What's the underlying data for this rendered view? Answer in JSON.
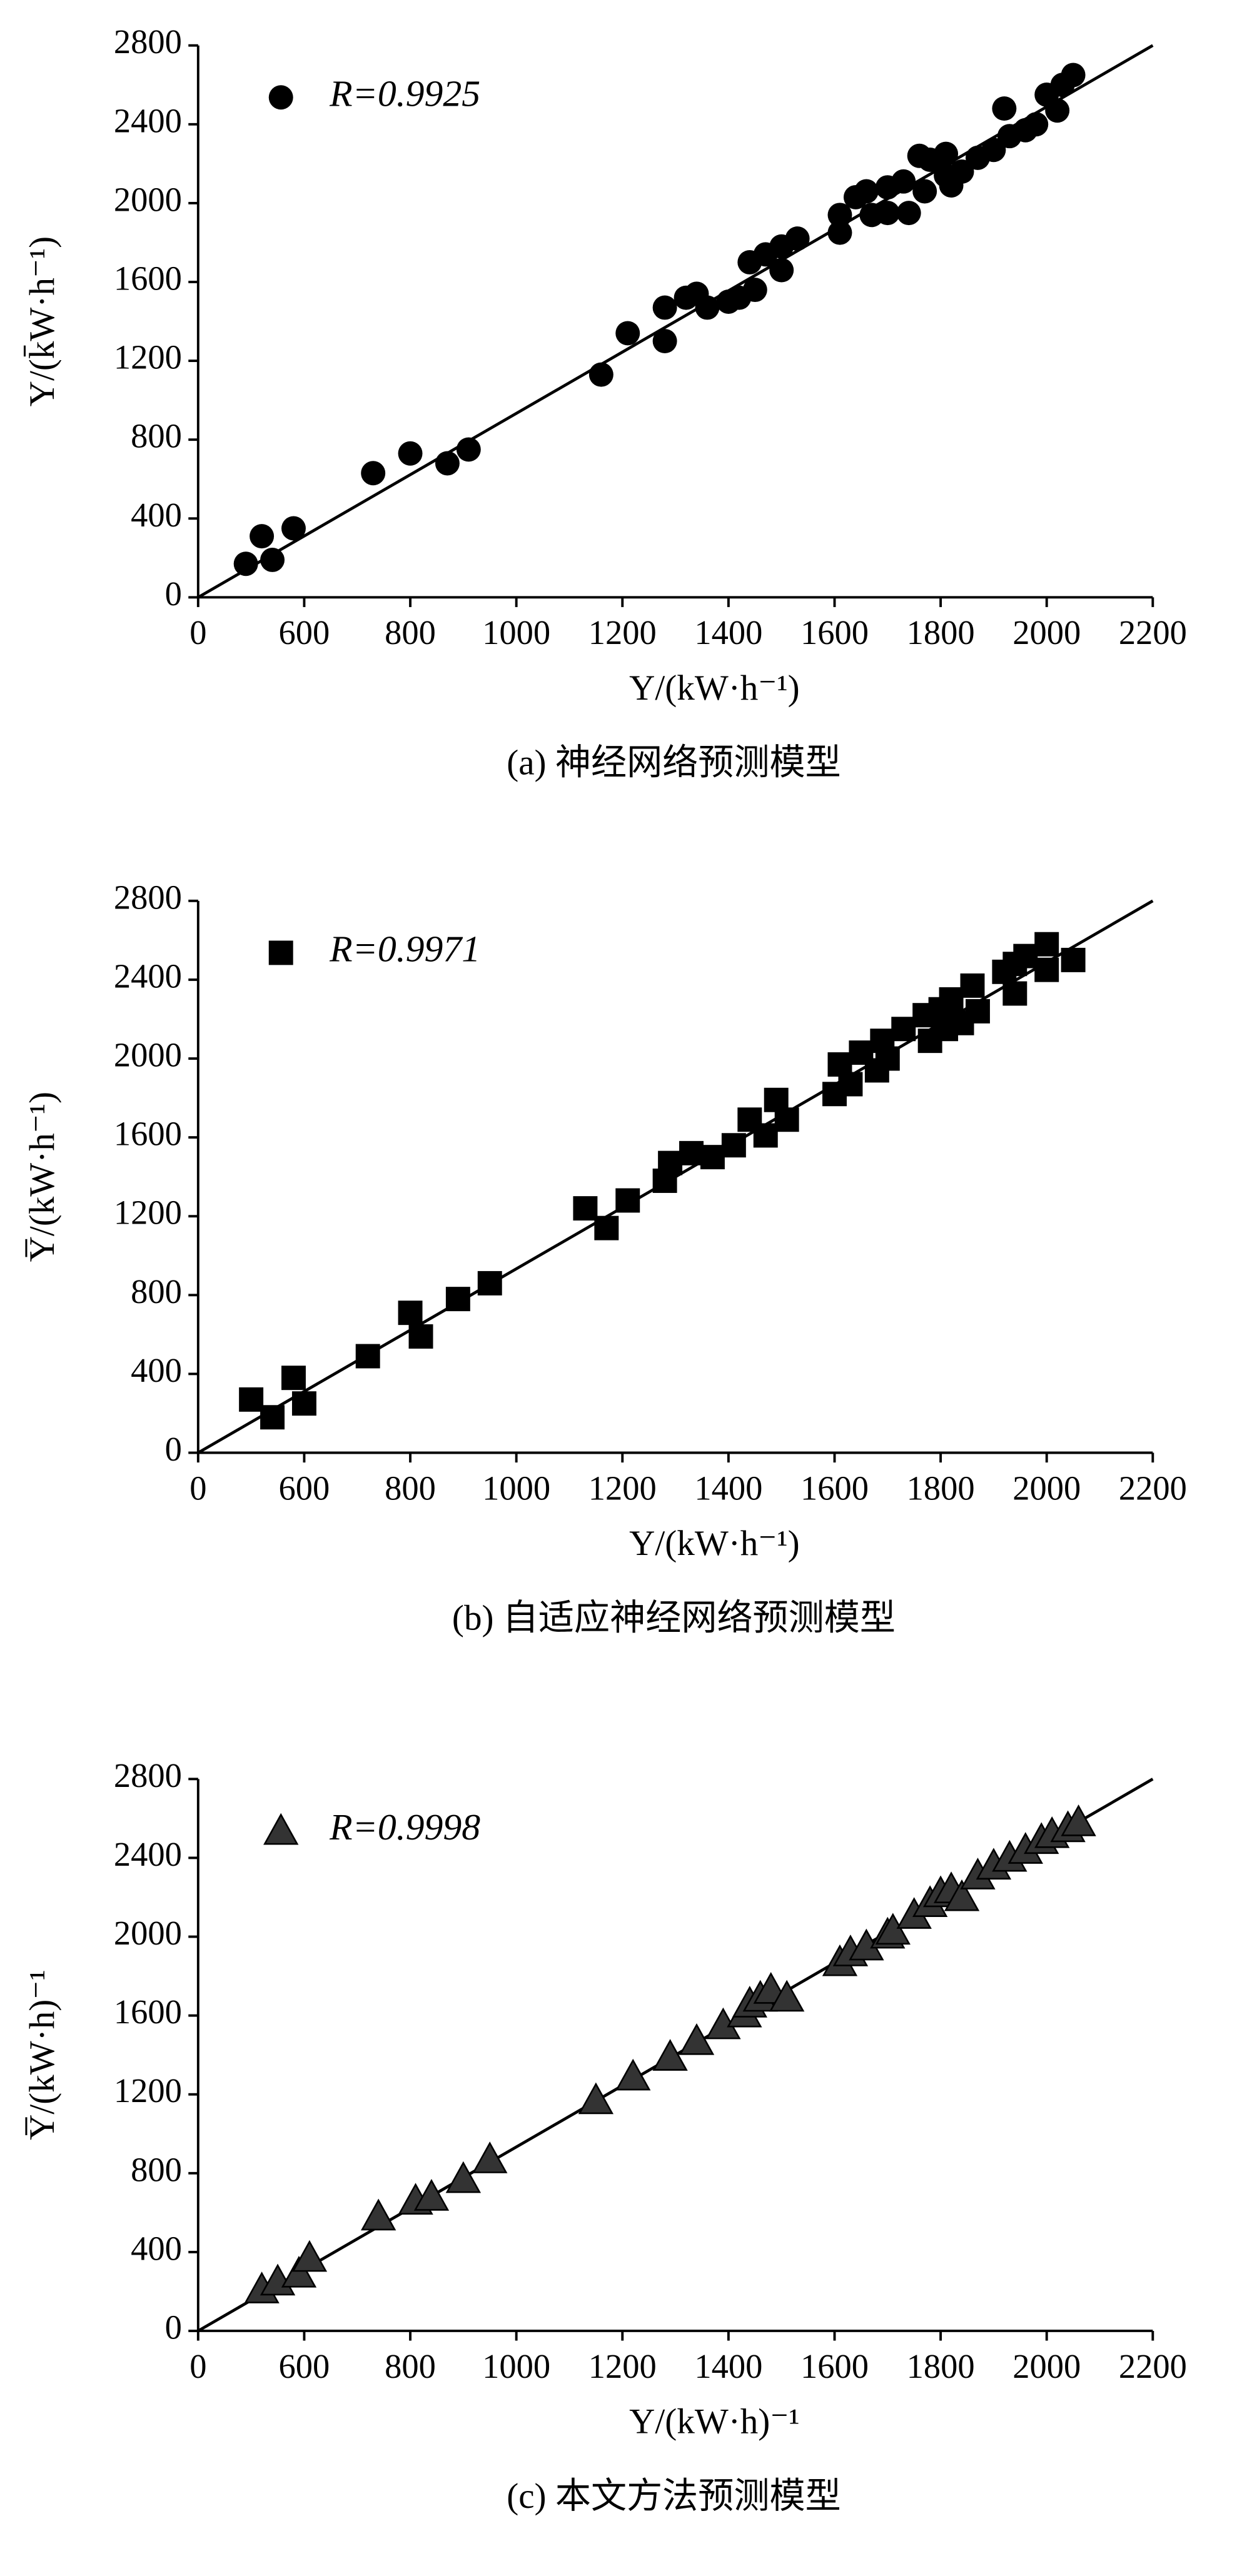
{
  "chart_data": [
    {
      "type": "scatter",
      "caption": "(a) 神经网络预测模型",
      "x_label": "Y/(kW·h⁻¹)",
      "y_label": "Y/(k̄W·h⁻¹)",
      "xlim": [
        400,
        2200
      ],
      "ylim": [
        0,
        2800
      ],
      "xticks": [
        {
          "value": 400,
          "label": "0"
        },
        600,
        800,
        1000,
        1200,
        1400,
        1600,
        1800,
        2000,
        2200
      ],
      "yticks": [
        0,
        400,
        800,
        1200,
        1600,
        2000,
        2400,
        2800
      ],
      "line": {
        "x": [
          400,
          2200
        ],
        "y": [
          0,
          2800
        ],
        "color": "#000000"
      },
      "series": [
        {
          "name": "R=0.9925",
          "color": "#000000",
          "marker": "circle",
          "x": [
            490,
            520,
            540,
            580,
            730,
            800,
            870,
            910,
            1160,
            1210,
            1280,
            1280,
            1320,
            1340,
            1360,
            1400,
            1420,
            1450,
            1440,
            1470,
            1500,
            1500,
            1530,
            1610,
            1610,
            1640,
            1660,
            1670,
            1700,
            1700,
            1730,
            1740,
            1760,
            1770,
            1780,
            1810,
            1810,
            1820,
            1840,
            1870,
            1900,
            1920,
            1930,
            1960,
            1980,
            2000,
            2020,
            2030,
            2050
          ],
          "values": [
            170,
            310,
            190,
            350,
            630,
            730,
            680,
            750,
            1130,
            1340,
            1300,
            1470,
            1520,
            1540,
            1470,
            1500,
            1520,
            1560,
            1700,
            1740,
            1660,
            1780,
            1820,
            1940,
            1850,
            2030,
            2060,
            1940,
            2080,
            1950,
            2110,
            1950,
            2240,
            2060,
            2220,
            2250,
            2140,
            2090,
            2160,
            2230,
            2270,
            2480,
            2340,
            2370,
            2400,
            2550,
            2470,
            2600,
            2650
          ]
        }
      ]
    },
    {
      "type": "scatter",
      "caption": "(b) 自适应神经网络预测模型",
      "x_label": "Y/(kW·h⁻¹)",
      "y_label": "Y̅/(kW·h⁻¹)",
      "xlim": [
        400,
        2200
      ],
      "ylim": [
        0,
        2800
      ],
      "xticks": [
        {
          "value": 400,
          "label": "0"
        },
        600,
        800,
        1000,
        1200,
        1400,
        1600,
        1800,
        2000,
        2200
      ],
      "yticks": [
        0,
        400,
        800,
        1200,
        1600,
        2000,
        2400,
        2800
      ],
      "line": {
        "x": [
          400,
          2200
        ],
        "y": [
          0,
          2800
        ],
        "color": "#000000"
      },
      "series": [
        {
          "name": "R=0.9971",
          "color": "#000000",
          "marker": "square",
          "x": [
            500,
            540,
            580,
            600,
            720,
            800,
            820,
            890,
            950,
            1130,
            1170,
            1210,
            1280,
            1290,
            1330,
            1370,
            1410,
            1440,
            1470,
            1490,
            1510,
            1600,
            1610,
            1630,
            1650,
            1680,
            1690,
            1700,
            1730,
            1770,
            1780,
            1800,
            1810,
            1820,
            1840,
            1860,
            1870,
            1920,
            1940,
            1940,
            1960,
            2000,
            2000,
            2050
          ],
          "values": [
            270,
            180,
            380,
            250,
            490,
            710,
            590,
            780,
            860,
            1240,
            1140,
            1280,
            1380,
            1470,
            1520,
            1500,
            1560,
            1690,
            1610,
            1790,
            1690,
            1820,
            1970,
            1870,
            2030,
            1940,
            2090,
            2000,
            2150,
            2220,
            2090,
            2250,
            2150,
            2300,
            2180,
            2370,
            2240,
            2440,
            2480,
            2330,
            2520,
            2580,
            2450,
            2500
          ]
        }
      ]
    },
    {
      "type": "scatter",
      "caption": "(c) 本文方法预测模型",
      "x_label": "Y/(kW·h)⁻¹",
      "y_label": "Y̅/(kW·h)⁻¹",
      "xlim": [
        400,
        2200
      ],
      "ylim": [
        0,
        2800
      ],
      "xticks": [
        {
          "value": 400,
          "label": "0"
        },
        600,
        800,
        1000,
        1200,
        1400,
        1600,
        1800,
        2000,
        2200
      ],
      "yticks": [
        0,
        400,
        800,
        1200,
        1600,
        2000,
        2400,
        2800
      ],
      "line": {
        "x": [
          400,
          2200
        ],
        "y": [
          0,
          2800
        ],
        "color": "#000000"
      },
      "series": [
        {
          "name": "R=0.9998",
          "color": "#333333",
          "marker": "triangle",
          "x": [
            520,
            550,
            590,
            610,
            740,
            810,
            840,
            900,
            950,
            1150,
            1220,
            1290,
            1340,
            1390,
            1430,
            1440,
            1460,
            1480,
            1510,
            1610,
            1630,
            1660,
            1700,
            1710,
            1750,
            1780,
            1800,
            1820,
            1840,
            1870,
            1900,
            1930,
            1960,
            1990,
            2010,
            2040,
            2060
          ],
          "values": [
            210,
            250,
            290,
            370,
            580,
            660,
            680,
            770,
            870,
            1170,
            1290,
            1390,
            1470,
            1550,
            1610,
            1660,
            1690,
            1730,
            1690,
            1870,
            1920,
            1950,
            2010,
            2030,
            2110,
            2170,
            2220,
            2240,
            2200,
            2310,
            2360,
            2400,
            2440,
            2490,
            2520,
            2550,
            2580
          ]
        }
      ]
    }
  ]
}
